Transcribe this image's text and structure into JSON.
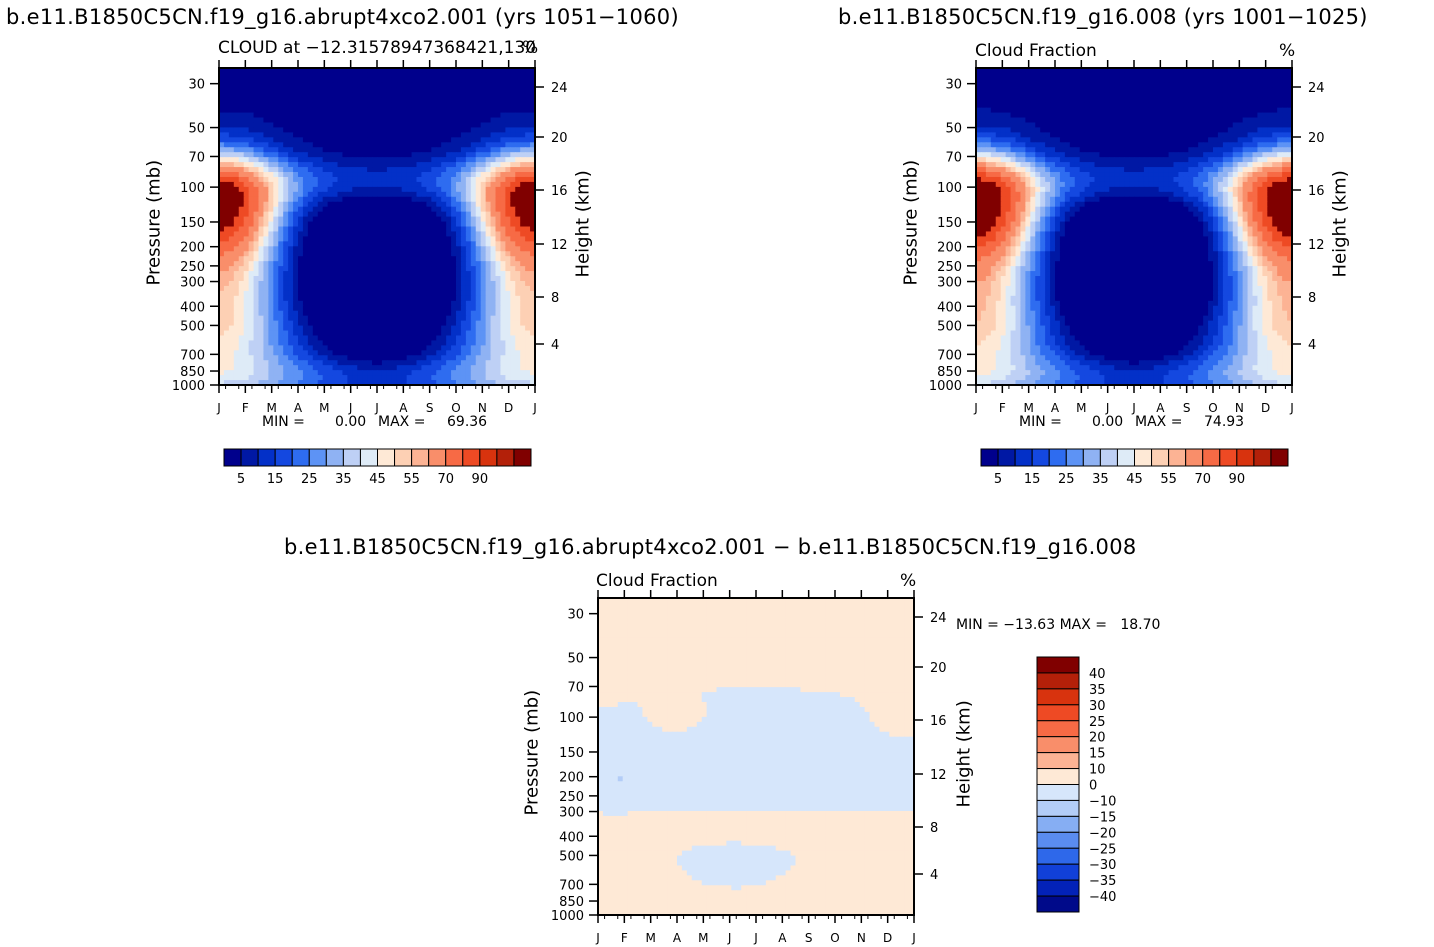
{
  "figure": {
    "panel1": {
      "title": "b.e11.B1850C5CN.f19_g16.abrupt4xco2.001 (yrs 1051−1060)",
      "subtitle_left": "CLOUD at −12.31578947368421,130",
      "subtitle_right": "%",
      "min_label": "MIN =",
      "min_value": "0.00",
      "max_label": "MAX =",
      "max_value": "69.36"
    },
    "panel2": {
      "title": "b.e11.B1850C5CN.f19_g16.008 (yrs 1001−1025)",
      "subtitle_left": "Cloud Fraction",
      "subtitle_right": "%",
      "min_label": "MIN =",
      "min_value": "0.00",
      "max_label": "MAX =",
      "max_value": "74.93"
    },
    "panel3": {
      "title": "b.e11.B1850C5CN.f19_g16.abrupt4xco2.001 − b.e11.B1850C5CN.f19_g16.008",
      "subtitle_left": "Cloud Fraction",
      "subtitle_right": "%",
      "minmax_text": "MIN = −13.63 MAX =   18.70"
    },
    "left_axis_title": "Pressure (mb)",
    "right_axis_title": "Height (km)"
  },
  "chart_data": [
    {
      "type": "heatmap",
      "id": "panel1",
      "title": "b.e11.B1850C5CN.f19_g16.abrupt4xco2.001 (yrs 1051−1060)",
      "variable": "Cloud Fraction (%)",
      "x_ticks": [
        "J",
        "F",
        "M",
        "A",
        "M",
        "J",
        "J",
        "A",
        "S",
        "O",
        "N",
        "D",
        "J"
      ],
      "y_left_ticks": [
        "30",
        "50",
        "70",
        "100",
        "150",
        "200",
        "250",
        "300",
        "400",
        "500",
        "700",
        "850",
        "1000"
      ],
      "y_right_ticks": [
        "24",
        "20",
        "16",
        "12",
        "8",
        "4"
      ],
      "y_left_label": "Pressure (mb)",
      "y_right_label": "Height (km)",
      "colorbar_labels": [
        "5",
        "15",
        "25",
        "35",
        "45",
        "55",
        "70",
        "90"
      ],
      "colors": [
        "#00008c",
        "#0018a4",
        "#0330c8",
        "#1448e0",
        "#2e6cf0",
        "#5d93f5",
        "#8fb2f3",
        "#bed0f5",
        "#deebf7",
        "#fee9d6",
        "#fdd0b4",
        "#fcb394",
        "#f98e6a",
        "#f76a45",
        "#ee4a24",
        "#d8330e",
        "#b32009",
        "#800000"
      ],
      "min": 0.0,
      "max": 69.36
    },
    {
      "type": "heatmap",
      "id": "panel2",
      "title": "b.e11.B1850C5CN.f19_g16.008 (yrs 1001−1025)",
      "variable": "Cloud Fraction (%)",
      "x_ticks": [
        "J",
        "F",
        "M",
        "A",
        "M",
        "J",
        "J",
        "A",
        "S",
        "O",
        "N",
        "D",
        "J"
      ],
      "y_left_ticks": [
        "30",
        "50",
        "70",
        "100",
        "150",
        "200",
        "250",
        "300",
        "400",
        "500",
        "700",
        "850",
        "1000"
      ],
      "y_right_ticks": [
        "24",
        "20",
        "16",
        "12",
        "8",
        "4"
      ],
      "y_left_label": "Pressure (mb)",
      "y_right_label": "Height (km)",
      "colorbar_labels": [
        "5",
        "15",
        "25",
        "35",
        "45",
        "55",
        "70",
        "90"
      ],
      "colors": [
        "#00008c",
        "#0018a4",
        "#0330c8",
        "#1448e0",
        "#2e6cf0",
        "#5d93f5",
        "#8fb2f3",
        "#bed0f5",
        "#deebf7",
        "#fee9d6",
        "#fdd0b4",
        "#fcb394",
        "#f98e6a",
        "#f76a45",
        "#ee4a24",
        "#d8330e",
        "#b32009",
        "#800000"
      ],
      "min": 0.0,
      "max": 74.93
    },
    {
      "type": "heatmap",
      "id": "panel3",
      "title": "b.e11.B1850C5CN.f19_g16.abrupt4xco2.001 − b.e11.B1850C5CN.f19_g16.008",
      "variable": "Cloud Fraction (%) difference",
      "x_ticks": [
        "J",
        "F",
        "M",
        "A",
        "M",
        "J",
        "J",
        "A",
        "S",
        "O",
        "N",
        "D",
        "J"
      ],
      "y_left_ticks": [
        "30",
        "50",
        "70",
        "100",
        "150",
        "200",
        "250",
        "300",
        "400",
        "500",
        "700",
        "850",
        "1000"
      ],
      "y_right_ticks": [
        "24",
        "20",
        "16",
        "12",
        "8",
        "4"
      ],
      "y_left_label": "Pressure (mb)",
      "y_right_label": "Height (km)",
      "colorbar_labels": [
        "40",
        "35",
        "30",
        "25",
        "20",
        "15",
        "10",
        "0",
        "−10",
        "−15",
        "−20",
        "−25",
        "−30",
        "−35",
        "−40"
      ],
      "colors": [
        "#800000",
        "#b32009",
        "#d8330e",
        "#ee4a24",
        "#f76a45",
        "#f98e6a",
        "#fcb394",
        "#fee9d6",
        "#d6e6fb",
        "#b3cdf7",
        "#86aef3",
        "#5a8cef",
        "#2e68ea",
        "#1140d8",
        "#0322b8",
        "#000a8a"
      ],
      "min": -13.63,
      "max": 18.7
    }
  ]
}
